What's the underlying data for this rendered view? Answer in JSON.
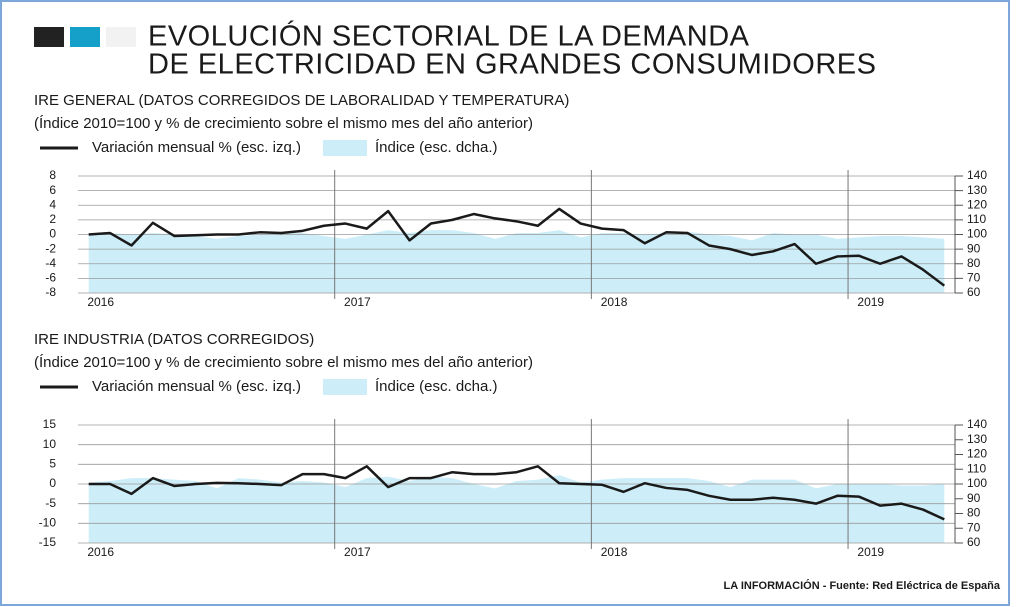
{
  "title": [
    "EVOLUCIÓN SECTORIAL DE LA DEMANDA",
    "DE ELECTRICIDAD EN GRANDES CONSUMIDORES"
  ],
  "source": "LA INFORMACIÓN - Fuente: Red Eléctrica de España",
  "chart_data": [
    {
      "type": "line",
      "title": "IRE GENERAL (DATOS CORREGIDOS DE LABORALIDAD Y TEMPERATURA)",
      "subtitle": "(Índice 2010=100 y % de crecimiento sobre el mismo mes del año anterior)",
      "categories": [
        "2016",
        null,
        null,
        null,
        null,
        null,
        null,
        null,
        null,
        null,
        null,
        null,
        "2017",
        null,
        null,
        null,
        null,
        null,
        null,
        null,
        null,
        null,
        null,
        null,
        "2018",
        null,
        null,
        null,
        null,
        null,
        null,
        null,
        null,
        null,
        null,
        null,
        "2019",
        null,
        null,
        null,
        null
      ],
      "series": [
        {
          "name": "Variación mensual % (esc. izq.)",
          "color": "#1a1a1a",
          "type": "line",
          "values": [
            0,
            0.2,
            -1.5,
            1.6,
            -0.2,
            -0.1,
            0,
            0,
            0.3,
            0.2,
            0.5,
            1.2,
            1.5,
            0.8,
            3.2,
            -0.8,
            1.5,
            2,
            2.8,
            2.2,
            1.8,
            1.2,
            3.5,
            1.5,
            0.8,
            0.6,
            -1.2,
            0.3,
            0.2,
            -1.5,
            -2,
            -2.8,
            -2.3,
            -1.3,
            -4,
            -3,
            -2.9,
            -4,
            -3,
            -4.8,
            -7
          ]
        },
        {
          "name": "Índice (esc. dcha.)",
          "color": "#cdeef8",
          "type": "area",
          "axis": "y2",
          "values": [
            101,
            101,
            100,
            101,
            100,
            99,
            97,
            99,
            100,
            101,
            101,
            99,
            97,
            100,
            103,
            101,
            103,
            103,
            101,
            97,
            101,
            101,
            103,
            98,
            101,
            101,
            100,
            101,
            102,
            100,
            99,
            96,
            101,
            100,
            100,
            97,
            98,
            99,
            99,
            98,
            97
          ]
        }
      ],
      "ylim": [
        -8,
        8
      ],
      "yticks": [
        -8,
        -6,
        -4,
        -2,
        0,
        2,
        4,
        6,
        8
      ],
      "y2lim": [
        60,
        140
      ],
      "y2ticks": [
        60,
        70,
        80,
        90,
        100,
        110,
        120,
        130,
        140
      ],
      "grid": true
    },
    {
      "type": "line",
      "title": "IRE INDUSTRIA (DATOS CORREGIDOS)",
      "subtitle": "(Índice 2010=100 y % de crecimiento sobre el mismo mes del año anterior)",
      "categories": [
        "2016",
        null,
        null,
        null,
        null,
        null,
        null,
        null,
        null,
        null,
        null,
        null,
        "2017",
        null,
        null,
        null,
        null,
        null,
        null,
        null,
        null,
        null,
        null,
        null,
        "2018",
        null,
        null,
        null,
        null,
        null,
        null,
        null,
        null,
        null,
        null,
        null,
        "2019",
        null,
        null,
        null,
        null
      ],
      "series": [
        {
          "name": "Variación mensual % (esc. izq.)",
          "color": "#1a1a1a",
          "type": "line",
          "values": [
            0,
            0,
            -2.5,
            1.5,
            -0.5,
            0,
            0.3,
            0.2,
            0,
            -0.3,
            2.5,
            2.5,
            1.5,
            4.5,
            -0.8,
            1.5,
            1.5,
            3,
            2.5,
            2.5,
            3,
            4.5,
            0.2,
            0,
            -0.2,
            -2,
            0.2,
            -1,
            -1.5,
            -3,
            -4,
            -4,
            -3.5,
            -4,
            -5,
            -3,
            -3.2,
            -5.5,
            -5,
            -6.5,
            -9
          ]
        },
        {
          "name": "Índice (esc. dcha.)",
          "color": "#cdeef8",
          "type": "area",
          "axis": "y2",
          "values": [
            101,
            102,
            104,
            104,
            103,
            102,
            97,
            104,
            103,
            101,
            102,
            101,
            98,
            104,
            105,
            102,
            105,
            104,
            100,
            97,
            102,
            103,
            106,
            101,
            103,
            104,
            104,
            104,
            104,
            102,
            98,
            103,
            103,
            103,
            97,
            100,
            100,
            100,
            99,
            99,
            100
          ]
        }
      ],
      "ylim": [
        -15,
        15
      ],
      "yticks": [
        -15,
        -10,
        -5,
        0,
        5,
        10,
        15
      ],
      "y2lim": [
        60,
        140
      ],
      "y2ticks": [
        60,
        70,
        80,
        90,
        100,
        110,
        120,
        130,
        140
      ],
      "grid": true
    }
  ]
}
